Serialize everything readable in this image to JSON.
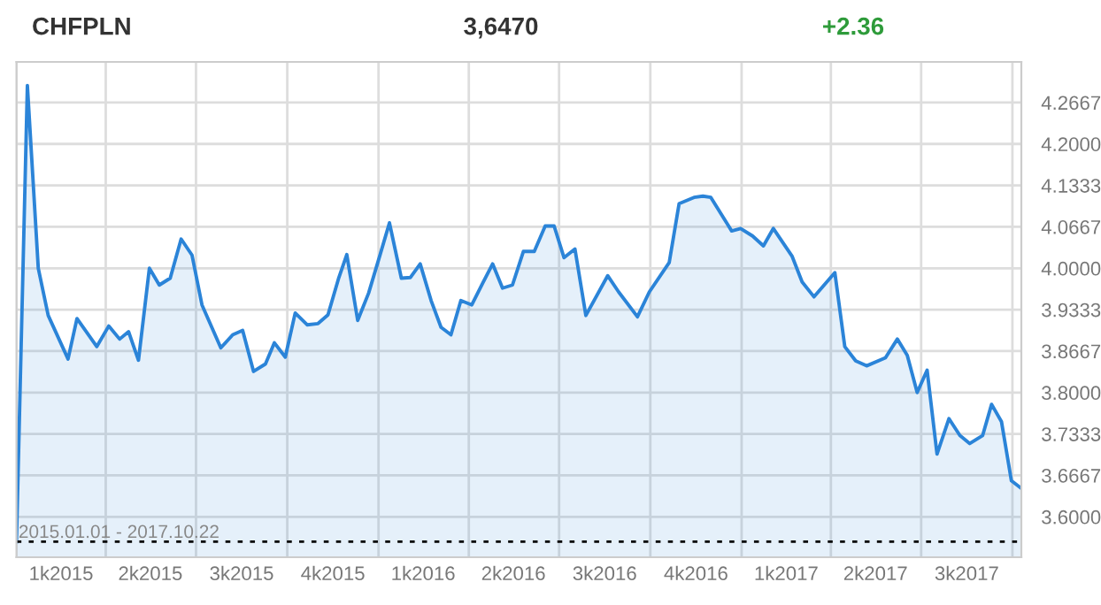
{
  "chart_data": {
    "type": "area",
    "title": "CHFPLN",
    "annotations": [
      "3,6470",
      "+2.36"
    ],
    "x": [
      "2015-01-01",
      "2015-01-12",
      "2015-01-23",
      "2015-02-02",
      "2015-02-22",
      "2015-03-03",
      "2015-03-23",
      "2015-04-04",
      "2015-04-15",
      "2015-04-24",
      "2015-05-04",
      "2015-05-15",
      "2015-05-25",
      "2015-06-05",
      "2015-06-16",
      "2015-06-27",
      "2015-07-07",
      "2015-07-26",
      "2015-08-07",
      "2015-08-17",
      "2015-08-28",
      "2015-09-09",
      "2015-09-18",
      "2015-09-29",
      "2015-10-09",
      "2015-10-21",
      "2015-11-01",
      "2015-11-11",
      "2015-11-22",
      "2015-11-30",
      "2015-12-11",
      "2015-12-22",
      "2016-01-03",
      "2016-01-12",
      "2016-01-24",
      "2016-02-02",
      "2016-02-12",
      "2016-02-23",
      "2016-03-04",
      "2016-03-14",
      "2016-03-24",
      "2016-04-04",
      "2016-04-15",
      "2016-04-25",
      "2016-05-05",
      "2016-05-15",
      "2016-05-26",
      "2016-06-06",
      "2016-06-17",
      "2016-06-26",
      "2016-07-06",
      "2016-07-17",
      "2016-07-28",
      "2016-08-19",
      "2016-08-30",
      "2016-09-18",
      "2016-09-30",
      "2016-10-20",
      "2016-10-30",
      "2016-11-14",
      "2016-11-23",
      "2016-12-01",
      "2016-12-22",
      "2016-12-31",
      "2017-01-12",
      "2017-01-23",
      "2017-02-02",
      "2017-02-21",
      "2017-03-03",
      "2017-03-15",
      "2017-04-05",
      "2017-04-15",
      "2017-04-26",
      "2017-05-07",
      "2017-05-26",
      "2017-06-07",
      "2017-06-17",
      "2017-06-27",
      "2017-07-07",
      "2017-07-17",
      "2017-07-29",
      "2017-08-09",
      "2017-08-19",
      "2017-09-01",
      "2017-09-10",
      "2017-09-20",
      "2017-09-30",
      "2017-10-09"
    ],
    "series": [
      {
        "color": "#2b84d8",
        "values": [
          3.56,
          4.294,
          4.0,
          3.924,
          3.854,
          3.919,
          3.874,
          3.907,
          3.886,
          3.898,
          3.852,
          4.0,
          3.973,
          3.984,
          4.047,
          4.021,
          3.941,
          3.872,
          3.893,
          3.9,
          3.834,
          3.846,
          3.88,
          3.857,
          3.928,
          3.909,
          3.911,
          3.925,
          3.985,
          4.022,
          3.916,
          3.96,
          4.024,
          4.073,
          3.984,
          3.985,
          4.007,
          3.948,
          3.905,
          3.893,
          3.948,
          3.941,
          3.976,
          4.007,
          3.968,
          3.973,
          4.027,
          4.027,
          4.068,
          4.068,
          4.017,
          4.031,
          3.924,
          3.988,
          3.962,
          3.922,
          3.962,
          4.009,
          4.104,
          4.114,
          4.116,
          4.114,
          4.06,
          4.064,
          4.052,
          4.036,
          4.064,
          4.019,
          3.978,
          3.954,
          3.993,
          3.874,
          3.851,
          3.843,
          3.856,
          3.886,
          3.86,
          3.8,
          3.836,
          3.701,
          3.758,
          3.731,
          3.718,
          3.731,
          3.781,
          3.753,
          3.658,
          3.647
        ]
      }
    ],
    "xlim": [
      "2015-01-01",
      "2017-10-10"
    ],
    "xticks": [
      {
        "value": "2015-01-01",
        "label": null
      },
      {
        "value": "2015-02-15",
        "label": "1k2015"
      },
      {
        "value": "2015-04-01",
        "label": null
      },
      {
        "value": "2015-05-16",
        "label": "2k2015"
      },
      {
        "value": "2015-07-01",
        "label": null
      },
      {
        "value": "2015-08-16",
        "label": "3k2015"
      },
      {
        "value": "2015-10-01",
        "label": null
      },
      {
        "value": "2015-11-16",
        "label": "4k2015"
      },
      {
        "value": "2016-01-01",
        "label": null
      },
      {
        "value": "2016-02-15",
        "label": "1k2016"
      },
      {
        "value": "2016-04-01",
        "label": null
      },
      {
        "value": "2016-05-16",
        "label": "2k2016"
      },
      {
        "value": "2016-07-01",
        "label": null
      },
      {
        "value": "2016-08-16",
        "label": "3k2016"
      },
      {
        "value": "2016-10-01",
        "label": null
      },
      {
        "value": "2016-11-16",
        "label": "4k2016"
      },
      {
        "value": "2017-01-01",
        "label": null
      },
      {
        "value": "2017-02-15",
        "label": "1k2017"
      },
      {
        "value": "2017-04-01",
        "label": null
      },
      {
        "value": "2017-05-16",
        "label": "2k2017"
      },
      {
        "value": "2017-07-01",
        "label": null
      },
      {
        "value": "2017-08-16",
        "label": "3k2017"
      },
      {
        "value": "2017-10-01",
        "label": null
      }
    ],
    "ylim": [
      3.535,
      4.332
    ],
    "yticks": [
      {
        "value": 3.6,
        "label": "3.6000"
      },
      {
        "value": 3.6667,
        "label": "3.6667"
      },
      {
        "value": 3.7333,
        "label": "3.7333"
      },
      {
        "value": 3.8,
        "label": "3.8000"
      },
      {
        "value": 3.8667,
        "label": "3.8667"
      },
      {
        "value": 3.9333,
        "label": "3.9333"
      },
      {
        "value": 4.0,
        "label": "4.0000"
      },
      {
        "value": 4.0667,
        "label": "4.0667"
      },
      {
        "value": 4.1333,
        "label": "4.1333"
      },
      {
        "value": 4.2,
        "label": "4.2000"
      },
      {
        "value": 4.2667,
        "label": "4.2667"
      }
    ],
    "ref_lines": [
      {
        "axis": "y",
        "value": 3.56,
        "label": "2015.01.01 - 2017.10.22",
        "color": "#000000",
        "line_style": "dotted"
      }
    ],
    "grid": true
  }
}
